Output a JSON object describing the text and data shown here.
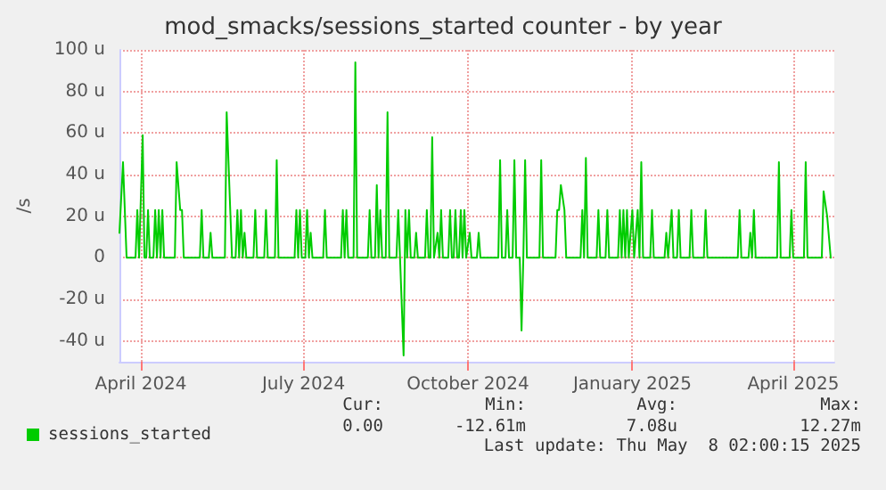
{
  "chart_data": {
    "type": "line",
    "title": "mod_smacks/sessions_started counter - by year",
    "ylabel": "/s",
    "x": [
      "2024-03-20",
      "2024-03-22",
      "2024-03-24",
      "2024-03-29",
      "2024-03-30",
      "2024-03-31",
      "2024-04-02",
      "2024-04-03",
      "2024-04-04",
      "2024-04-05",
      "2024-04-06",
      "2024-04-08",
      "2024-04-09",
      "2024-04-10",
      "2024-04-11",
      "2024-04-12",
      "2024-04-13",
      "2024-04-14",
      "2024-04-20",
      "2024-04-21",
      "2024-04-23",
      "2024-04-24",
      "2024-04-25",
      "2024-05-04",
      "2024-05-05",
      "2024-05-06",
      "2024-05-09",
      "2024-05-10",
      "2024-05-11",
      "2024-05-18",
      "2024-05-19",
      "2024-05-21",
      "2024-05-22",
      "2024-05-24",
      "2024-05-25",
      "2024-05-26",
      "2024-05-27",
      "2024-05-28",
      "2024-05-29",
      "2024-05-30",
      "2024-06-03",
      "2024-06-04",
      "2024-06-05",
      "2024-06-09",
      "2024-06-10",
      "2024-06-11",
      "2024-06-15",
      "2024-06-16",
      "2024-06-17",
      "2024-06-26",
      "2024-06-27",
      "2024-06-28",
      "2024-06-29",
      "2024-06-30",
      "2024-07-02",
      "2024-07-03",
      "2024-07-04",
      "2024-07-05",
      "2024-07-06",
      "2024-07-12",
      "2024-07-13",
      "2024-07-14",
      "2024-07-22",
      "2024-07-23",
      "2024-07-24",
      "2024-07-25",
      "2024-07-26",
      "2024-07-29",
      "2024-07-30",
      "2024-07-31",
      "2024-08-06",
      "2024-08-07",
      "2024-08-08",
      "2024-08-10",
      "2024-08-11",
      "2024-08-12",
      "2024-08-13",
      "2024-08-14",
      "2024-08-16",
      "2024-08-17",
      "2024-08-18",
      "2024-08-22",
      "2024-08-23",
      "2024-08-24",
      "2024-08-26",
      "2024-08-27",
      "2024-08-28",
      "2024-08-29",
      "2024-08-30",
      "2024-09-01",
      "2024-09-02",
      "2024-09-03",
      "2024-09-07",
      "2024-09-08",
      "2024-09-09",
      "2024-09-10",
      "2024-09-11",
      "2024-09-12",
      "2024-09-14",
      "2024-09-15",
      "2024-09-16",
      "2024-09-17",
      "2024-09-20",
      "2024-09-21",
      "2024-09-22",
      "2024-09-23",
      "2024-09-24",
      "2024-09-25",
      "2024-09-26",
      "2024-09-27",
      "2024-09-28",
      "2024-09-29",
      "2024-09-30",
      "2024-10-02",
      "2024-10-03",
      "2024-10-06",
      "2024-10-07",
      "2024-10-08",
      "2024-10-18",
      "2024-10-19",
      "2024-10-20",
      "2024-10-22",
      "2024-10-23",
      "2024-10-24",
      "2024-10-26",
      "2024-10-27",
      "2024-10-28",
      "2024-10-30",
      "2024-10-31",
      "2024-11-01",
      "2024-11-02",
      "2024-11-03",
      "2024-11-10",
      "2024-11-11",
      "2024-11-12",
      "2024-11-19",
      "2024-11-20",
      "2024-11-21",
      "2024-11-22",
      "2024-11-24",
      "2024-11-25",
      "2024-12-03",
      "2024-12-04",
      "2024-12-05",
      "2024-12-06",
      "2024-12-07",
      "2024-12-12",
      "2024-12-13",
      "2024-12-14",
      "2024-12-17",
      "2024-12-18",
      "2024-12-19",
      "2024-12-24",
      "2024-12-25",
      "2024-12-26",
      "2024-12-27",
      "2024-12-28",
      "2024-12-29",
      "2024-12-30",
      "2025-01-01",
      "2025-01-02",
      "2025-01-04",
      "2025-01-05",
      "2025-01-06",
      "2025-01-07",
      "2025-01-11",
      "2025-01-12",
      "2025-01-13",
      "2025-01-19",
      "2025-01-20",
      "2025-01-21",
      "2025-01-23",
      "2025-01-24",
      "2025-01-26",
      "2025-01-27",
      "2025-01-28",
      "2025-02-02",
      "2025-02-03",
      "2025-02-04",
      "2025-02-10",
      "2025-02-11",
      "2025-02-12",
      "2025-03-01",
      "2025-03-02",
      "2025-03-03",
      "2025-03-07",
      "2025-03-08",
      "2025-03-09",
      "2025-03-10",
      "2025-03-11",
      "2025-03-23",
      "2025-03-24",
      "2025-03-25",
      "2025-03-30",
      "2025-03-31",
      "2025-04-01",
      "2025-04-07",
      "2025-04-08",
      "2025-04-09",
      "2025-04-17",
      "2025-04-18",
      "2025-04-20",
      "2025-04-22"
    ],
    "series": [
      {
        "name": "sessions_started",
        "color": "#00cc00",
        "values": [
          12,
          46,
          0,
          0,
          23,
          0,
          59,
          0,
          0,
          23,
          0,
          0,
          23,
          0,
          23,
          0,
          23,
          0,
          0,
          46,
          23,
          23,
          0,
          0,
          23,
          0,
          0,
          12,
          0,
          0,
          70,
          23,
          0,
          0,
          23,
          0,
          23,
          0,
          12,
          0,
          0,
          23,
          0,
          0,
          23,
          0,
          0,
          47,
          0,
          0,
          23,
          0,
          23,
          0,
          0,
          23,
          0,
          12,
          0,
          0,
          23,
          0,
          0,
          23,
          0,
          23,
          0,
          0,
          94,
          0,
          0,
          23,
          0,
          0,
          35,
          0,
          23,
          0,
          0,
          70,
          0,
          0,
          23,
          0,
          -47,
          23,
          0,
          23,
          0,
          0,
          12,
          0,
          0,
          23,
          0,
          0,
          58,
          0,
          12,
          0,
          23,
          0,
          0,
          23,
          0,
          0,
          23,
          0,
          0,
          23,
          0,
          23,
          0,
          12,
          0,
          0,
          12,
          0,
          0,
          47,
          0,
          0,
          23,
          0,
          0,
          47,
          0,
          0,
          -35,
          0,
          47,
          0,
          0,
          47,
          0,
          0,
          23,
          23,
          35,
          23,
          0,
          0,
          23,
          0,
          48,
          0,
          0,
          23,
          0,
          0,
          23,
          0,
          0,
          23,
          0,
          23,
          0,
          23,
          0,
          23,
          0,
          23,
          0,
          46,
          0,
          0,
          23,
          0,
          0,
          12,
          0,
          23,
          0,
          0,
          23,
          0,
          0,
          23,
          0,
          0,
          23,
          0,
          0,
          23,
          0,
          0,
          12,
          0,
          23,
          0,
          0,
          46,
          0,
          0,
          23,
          0,
          0,
          46,
          0,
          0,
          32,
          20,
          0
        ]
      }
    ],
    "xlim": [
      "2024-03-20",
      "2025-04-24"
    ],
    "xticks": [
      {
        "value": "2024-04-01",
        "label": "April 2024"
      },
      {
        "value": "2024-07-01",
        "label": "July 2024"
      },
      {
        "value": "2024-10-01",
        "label": "October 2024"
      },
      {
        "value": "2025-01-01",
        "label": "January 2025"
      },
      {
        "value": "2025-04-01",
        "label": "April 2025"
      }
    ],
    "ylim": [
      -50,
      100
    ],
    "yticks": [
      {
        "value": -40,
        "label": "-40 u"
      },
      {
        "value": -20,
        "label": "-20 u"
      },
      0,
      {
        "value": 20,
        "label": "20 u"
      },
      {
        "value": 40,
        "label": "40 u"
      },
      {
        "value": 60,
        "label": "60 u"
      },
      {
        "value": 80,
        "label": "80 u"
      },
      {
        "value": 100,
        "label": "100 u"
      }
    ],
    "grid": true,
    "legend": "bottom left",
    "marker": "none",
    "line_style": "solid",
    "annotations": [
      "Cur:",
      "0.00",
      "Min:",
      "-12.61m",
      "Avg:",
      "7.08u",
      "Max:",
      "12.27m",
      "Last update: Thu May  8 02:00:15 2025"
    ]
  }
}
